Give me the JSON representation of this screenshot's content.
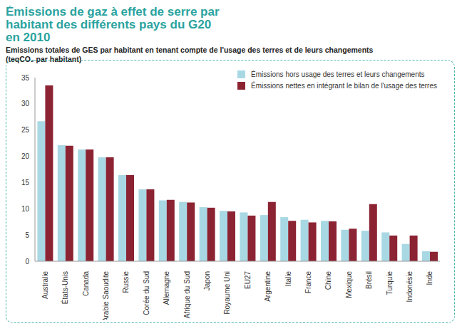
{
  "chart_data": {
    "type": "bar",
    "title": "Émissions de gaz à effet de serre par habitant des différents pays du G20 en 2010",
    "subtitle": "Emissions totales de GES par habitant en tenant compte de l'usage des terres et de leurs changements (teqCO₂ par habitant)",
    "categories": [
      "Australie",
      "États-Unis",
      "Canada",
      "Arabie Saoudite",
      "Russie",
      "Corée du Sud",
      "Allemagne",
      "Afrique du Sud",
      "Japon",
      "Royaume Uni",
      "EU27",
      "Argentine",
      "Italie",
      "France",
      "Chine",
      "Mexique",
      "Brésil",
      "Turquie",
      "Indonésie",
      "Inde"
    ],
    "series": [
      {
        "name": "Émissions hors usage des terres et leurs changements",
        "color": "#a8d8e4",
        "values": [
          26.7,
          22.1,
          21.3,
          19.8,
          16.4,
          13.7,
          11.6,
          11.3,
          10.3,
          9.6,
          9.3,
          8.8,
          8.4,
          7.9,
          7.7,
          6.0,
          5.8,
          5.5,
          3.3,
          1.9
        ]
      },
      {
        "name": "Émissions nettes en intégrant le bilan de l'usage des terres",
        "color": "#8c2333",
        "values": [
          33.5,
          22.0,
          21.3,
          19.8,
          16.4,
          13.7,
          11.7,
          11.2,
          10.2,
          9.5,
          8.7,
          11.3,
          7.7,
          7.4,
          7.6,
          6.2,
          10.9,
          4.9,
          4.9,
          1.8
        ]
      }
    ],
    "ylim": [
      0,
      35
    ],
    "yticks": [
      0,
      5,
      10,
      15,
      20,
      25,
      30,
      35
    ],
    "grid": false,
    "legend": "upper right"
  }
}
